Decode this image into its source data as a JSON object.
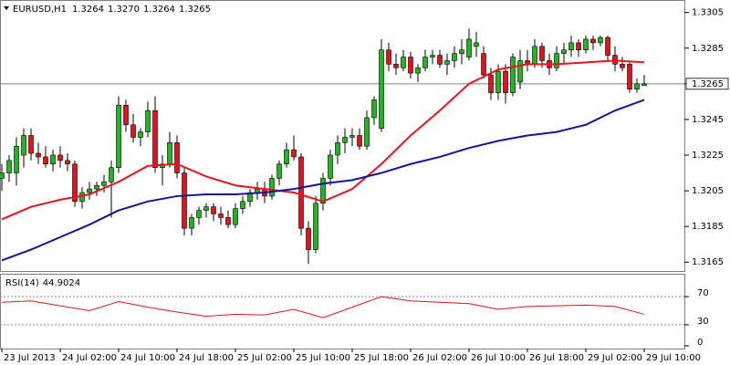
{
  "chart_data": [
    {
      "type": "candlestick",
      "title": "EURUSD,H1",
      "header_values": [
        "1.3264",
        "1.3270",
        "1.3264",
        "1.3265"
      ],
      "categories": [
        "23 Jul 2013",
        null,
        null,
        null,
        null,
        null,
        null,
        null,
        "24 Jul 02:00",
        null,
        null,
        null,
        null,
        null,
        null,
        null,
        "24 Jul 10:00",
        null,
        null,
        null,
        null,
        null,
        null,
        null,
        "24 Jul 18:00",
        null,
        null,
        null,
        null,
        null,
        null,
        null,
        "25 Jul 02:00",
        null,
        null,
        null,
        null,
        null,
        null,
        null,
        "25 Jul 10:00",
        null,
        null,
        null,
        null,
        null,
        null,
        null,
        "25 Jul 18:00",
        null,
        null,
        null,
        null,
        null,
        null,
        null,
        "26 Jul 02:00",
        null,
        null,
        null,
        null,
        null,
        null,
        null,
        "26 Jul 10:00",
        null,
        null,
        null,
        null,
        null,
        null,
        null,
        "26 Jul 18:00",
        null,
        null,
        null,
        null,
        null,
        null,
        null,
        "29 Jul 02:00",
        null,
        null,
        null,
        null,
        null,
        null,
        null,
        "29 Jul 10:00"
      ],
      "open": [
        1.3212,
        1.3215,
        1.3215,
        1.3225,
        1.3236,
        1.3226,
        1.3224,
        1.322,
        1.3225,
        1.3222,
        1.322,
        1.3199,
        1.3204,
        1.3206,
        1.3208,
        1.321,
        1.3218,
        1.3253,
        1.3242,
        1.3235,
        1.3238,
        1.325,
        1.3218,
        1.322,
        1.3232,
        1.3215,
        1.3184,
        1.319,
        1.3194,
        1.3196,
        1.3192,
        1.319,
        1.3186,
        1.3195,
        1.3199,
        1.3204,
        1.3206,
        1.3202,
        1.3212,
        1.322,
        1.3228,
        1.3224,
        1.3184,
        1.3172,
        1.3198,
        1.3212,
        1.3225,
        1.3232,
        1.3235,
        1.3236,
        1.323,
        1.3246,
        1.324,
        1.3284,
        1.3276,
        1.3274,
        1.328,
        1.3271,
        1.3274,
        1.328,
        1.3281,
        1.3276,
        1.3278,
        1.3282,
        1.328,
        1.3286,
        1.3282,
        1.327,
        1.326,
        1.3272,
        1.326,
        1.3266,
        1.3278,
        1.3276,
        1.3286,
        1.3278,
        1.3274,
        1.3282,
        1.3284,
        1.3288,
        1.3284,
        1.329,
        1.3288,
        1.3291,
        1.3281,
        1.3276,
        1.3276,
        1.3262,
        1.3264
      ],
      "high": [
        1.322,
        1.3225,
        1.3235,
        1.324,
        1.324,
        1.3232,
        1.323,
        1.3228,
        1.323,
        1.3226,
        1.3222,
        1.3207,
        1.321,
        1.321,
        1.3214,
        1.3222,
        1.3258,
        1.3256,
        1.3248,
        1.324,
        1.3255,
        1.3258,
        1.3225,
        1.3238,
        1.3236,
        1.3218,
        1.3192,
        1.3196,
        1.3198,
        1.3198,
        1.3196,
        1.3194,
        1.3198,
        1.3202,
        1.3206,
        1.321,
        1.321,
        1.3214,
        1.3222,
        1.3232,
        1.3236,
        1.3226,
        1.3188,
        1.3202,
        1.3215,
        1.3228,
        1.3236,
        1.324,
        1.324,
        1.324,
        1.325,
        1.3258,
        1.329,
        1.3288,
        1.3282,
        1.3284,
        1.3283,
        1.3276,
        1.3284,
        1.3284,
        1.3284,
        1.3282,
        1.3286,
        1.329,
        1.3296,
        1.3294,
        1.3286,
        1.3274,
        1.3276,
        1.3276,
        1.3282,
        1.3284,
        1.3284,
        1.329,
        1.3288,
        1.3282,
        1.3286,
        1.3288,
        1.3292,
        1.329,
        1.3292,
        1.3292,
        1.3292,
        1.3292,
        1.3286,
        1.328,
        1.3278,
        1.3268,
        1.327
      ],
      "low": [
        1.3205,
        1.321,
        1.3208,
        1.3218,
        1.3222,
        1.322,
        1.3218,
        1.3216,
        1.3218,
        1.3216,
        1.3196,
        1.3195,
        1.32,
        1.3202,
        1.3204,
        1.319,
        1.3215,
        1.3238,
        1.3232,
        1.323,
        1.3235,
        1.3215,
        1.3208,
        1.3218,
        1.3212,
        1.318,
        1.318,
        1.3186,
        1.319,
        1.3188,
        1.3186,
        1.3184,
        1.3184,
        1.3192,
        1.3196,
        1.32,
        1.3198,
        1.32,
        1.3208,
        1.3218,
        1.3222,
        1.318,
        1.3164,
        1.317,
        1.3194,
        1.3208,
        1.322,
        1.3226,
        1.323,
        1.3228,
        1.3228,
        1.3242,
        1.3238,
        1.3272,
        1.327,
        1.3272,
        1.3268,
        1.3266,
        1.3272,
        1.3276,
        1.3274,
        1.327,
        1.3274,
        1.3276,
        1.3278,
        1.328,
        1.3268,
        1.3256,
        1.3256,
        1.3254,
        1.3258,
        1.3262,
        1.3272,
        1.3274,
        1.3274,
        1.327,
        1.3272,
        1.3276,
        1.328,
        1.328,
        1.3282,
        1.3284,
        1.3286,
        1.3278,
        1.3272,
        1.3272,
        1.326,
        1.326,
        1.3264
      ],
      "close": [
        1.3215,
        1.3222,
        1.323,
        1.3236,
        1.3226,
        1.3224,
        1.322,
        1.3225,
        1.3222,
        1.322,
        1.3199,
        1.3204,
        1.3206,
        1.3208,
        1.321,
        1.3218,
        1.3253,
        1.3242,
        1.3235,
        1.3238,
        1.325,
        1.3218,
        1.322,
        1.3232,
        1.3215,
        1.3184,
        1.319,
        1.3194,
        1.3196,
        1.3192,
        1.319,
        1.3186,
        1.3195,
        1.3199,
        1.3204,
        1.3206,
        1.3202,
        1.3212,
        1.322,
        1.3228,
        1.3224,
        1.3184,
        1.3172,
        1.3198,
        1.3212,
        1.3225,
        1.3232,
        1.3235,
        1.3236,
        1.323,
        1.3246,
        1.3256,
        1.3284,
        1.3276,
        1.3274,
        1.328,
        1.3271,
        1.3274,
        1.328,
        1.3281,
        1.3276,
        1.3278,
        1.3282,
        1.3284,
        1.329,
        1.3288,
        1.327,
        1.326,
        1.3272,
        1.326,
        1.328,
        1.3278,
        1.3276,
        1.3286,
        1.3278,
        1.3274,
        1.3282,
        1.3284,
        1.3288,
        1.3284,
        1.329,
        1.3288,
        1.3291,
        1.3281,
        1.3276,
        1.3274,
        1.3262,
        1.3265,
        1.3265
      ],
      "up_color": "#22b422",
      "down_color": "#e0141e",
      "overlays": [
        {
          "color": "#e8141e",
          "x": [
            0,
            4,
            8,
            12,
            16,
            20,
            24,
            28,
            32,
            36,
            40,
            44,
            48,
            52,
            56,
            60,
            64,
            68,
            72,
            76,
            80,
            84,
            88
          ],
          "values": [
            1.3189,
            1.3196,
            1.32,
            1.3203,
            1.321,
            1.3219,
            1.322,
            1.3213,
            1.3208,
            1.3206,
            1.3204,
            1.3199,
            1.3206,
            1.322,
            1.3236,
            1.325,
            1.3265,
            1.3273,
            1.3276,
            1.3276,
            1.3277,
            1.3278,
            1.3277
          ]
        },
        {
          "color": "#14149b",
          "x": [
            0,
            4,
            8,
            12,
            16,
            20,
            24,
            28,
            32,
            36,
            40,
            44,
            48,
            52,
            56,
            60,
            64,
            68,
            72,
            76,
            80,
            84,
            88
          ],
          "values": [
            1.3166,
            1.3172,
            1.3179,
            1.3186,
            1.3194,
            1.3199,
            1.3202,
            1.3203,
            1.3203,
            1.3204,
            1.3206,
            1.3209,
            1.3211,
            1.3215,
            1.322,
            1.3224,
            1.3229,
            1.3233,
            1.3236,
            1.3238,
            1.3242,
            1.325,
            1.3256
          ]
        }
      ],
      "last_price": {
        "value": 1.3265,
        "label": "1.3265"
      },
      "ylim": [
        1.316,
        1.3312
      ],
      "yticks": [
        1.3165,
        1.3185,
        1.3205,
        1.3225,
        1.3245,
        1.3265,
        1.3285,
        1.3305
      ]
    },
    {
      "type": "line",
      "title": "RSI(14)",
      "x": [
        0,
        4,
        8,
        12,
        16,
        20,
        24,
        28,
        32,
        36,
        40,
        44,
        48,
        52,
        56,
        60,
        64,
        68,
        72,
        76,
        80,
        84,
        88
      ],
      "values": [
        62,
        64,
        57,
        50,
        63,
        55,
        48,
        42,
        45,
        44,
        52,
        40,
        55,
        70,
        64,
        62,
        60,
        52,
        56,
        57,
        58,
        56,
        44.9024
      ],
      "color": "#e0141e",
      "ylim": [
        0,
        100
      ],
      "yticks": [
        0,
        30,
        70
      ],
      "levels": [
        30,
        70
      ]
    }
  ]
}
